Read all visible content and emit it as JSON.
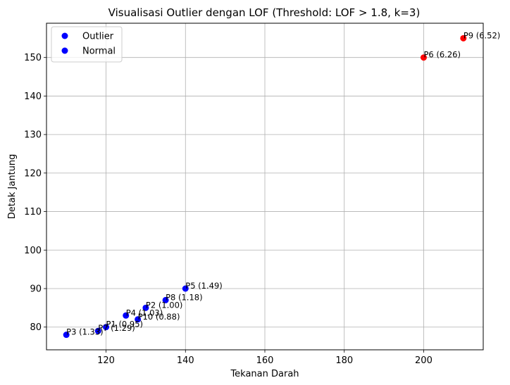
{
  "chart_data": {
    "type": "scatter",
    "title": "Visualisasi Outlier dengan LOF (Threshold: LOF > 1.8, k=3)",
    "xlabel": "Tekanan Darah",
    "ylabel": "Detak Jantung",
    "xlim": [
      105,
      215
    ],
    "ylim": [
      74.1,
      158.9
    ],
    "xticks": [
      120,
      140,
      160,
      180,
      200
    ],
    "yticks": [
      80,
      90,
      100,
      110,
      120,
      130,
      140,
      150
    ],
    "grid": true,
    "legend": {
      "placement": "top-left",
      "entries": [
        {
          "label": "Outlier",
          "color": "#0000ff"
        },
        {
          "label": "Normal",
          "color": "#0000ff"
        }
      ]
    },
    "colors": {
      "normal": "#0000ff",
      "outlier": "#ff0000"
    },
    "points": [
      {
        "id": "P1",
        "x": 120,
        "y": 80,
        "lof": 0.95,
        "label": "P1 (0.95)",
        "outlier": false
      },
      {
        "id": "P2",
        "x": 130,
        "y": 85,
        "lof": 1.0,
        "label": "P2 (1.00)",
        "outlier": false
      },
      {
        "id": "P3",
        "x": 110,
        "y": 78,
        "lof": 1.33,
        "label": "P3 (1.33)",
        "outlier": false
      },
      {
        "id": "P4",
        "x": 125,
        "y": 83,
        "lof": 1.03,
        "label": "P4 (1.03)",
        "outlier": false
      },
      {
        "id": "P5",
        "x": 140,
        "y": 90,
        "lof": 1.49,
        "label": "P5 (1.49)",
        "outlier": false
      },
      {
        "id": "P6",
        "x": 200,
        "y": 150,
        "lof": 6.26,
        "label": "P6 (6.26)",
        "outlier": true
      },
      {
        "id": "P7",
        "x": 118,
        "y": 79,
        "lof": 1.29,
        "label": "P7 (1.29)",
        "outlier": false
      },
      {
        "id": "P8",
        "x": 135,
        "y": 87,
        "lof": 1.18,
        "label": "P8 (1.18)",
        "outlier": false
      },
      {
        "id": "P9",
        "x": 210,
        "y": 155,
        "lof": 6.52,
        "label": "P9 (6.52)",
        "outlier": true
      },
      {
        "id": "P10",
        "x": 128,
        "y": 82,
        "lof": 0.88,
        "label": "P10 (0.88)",
        "outlier": false
      }
    ]
  }
}
